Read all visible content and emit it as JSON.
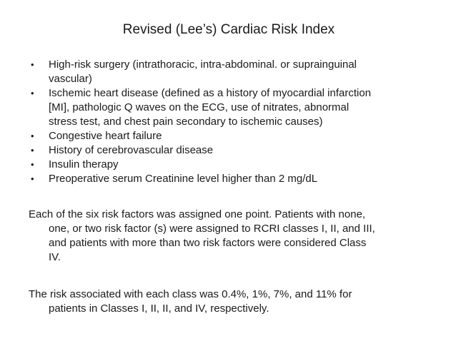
{
  "slide": {
    "title": "Revised (Lee’s) Cardiac Risk Index",
    "bullet_char": "•",
    "colors": {
      "background": "#ffffff",
      "text": "#1a1a1a"
    },
    "bullets": [
      {
        "lines": [
          "High-risk surgery (intrathoracic, intra-abdominal. or suprainguinal",
          "vascular)"
        ]
      },
      {
        "lines": [
          "Ischemic heart disease (defined as a history of myocardial infarction",
          "[MI], pathologic Q waves on the ECG, use of nitrates, abnormal",
          "stress test, and chest pain secondary to ischemic causes)"
        ]
      },
      {
        "lines": [
          "Congestive heart failure"
        ]
      },
      {
        "lines": [
          "History of cerebrovascular disease"
        ]
      },
      {
        "lines": [
          "Insulin therapy"
        ]
      },
      {
        "lines": [
          "Preoperative serum Creatinine level higher than 2 mg/dL"
        ]
      }
    ],
    "paragraphs": [
      {
        "lines": [
          "Each of the six risk factors was assigned one point. Patients with none,",
          "one, or two risk factor (s) were assigned to RCRI classes I, II, and III,",
          "and patients with more than two risk factors were considered Class",
          "IV."
        ]
      },
      {
        "lines": [
          "The risk associated with each class was 0.4%, 1%, 7%, and 11% for",
          "patients in Classes I, II, II, and IV, respectively."
        ]
      }
    ]
  }
}
